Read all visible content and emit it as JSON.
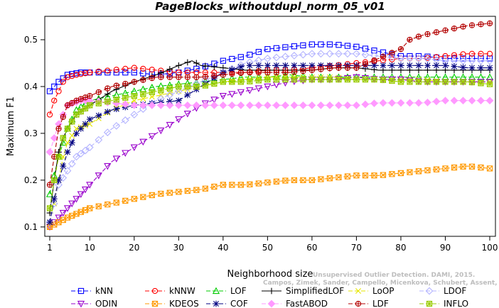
{
  "chart_data": {
    "type": "line",
    "title": "PageBlocks_withoutdupl_norm_05_v01",
    "xlabel": "Neighborhood size",
    "ylabel": "Maximum F1",
    "xlim": [
      1,
      100
    ],
    "ylim": [
      0.08,
      0.55
    ],
    "xticks": [
      1,
      10,
      20,
      30,
      40,
      50,
      60,
      70,
      80,
      90,
      100
    ],
    "yticks": [
      0.1,
      0.2,
      0.3,
      0.4,
      0.5
    ],
    "watermark": [
      "Unsupervised Outlier Detection. DAMI, 2015.",
      "Campos, Zimek, Sander, Campello, Micenkova, Schubert, Assent, Houle"
    ],
    "legend_position": "bottom",
    "series": [
      {
        "name": "kNN",
        "color": "#0000ff",
        "marker": "square",
        "dash": "6,3",
        "x": [
          1,
          3,
          5,
          8,
          10,
          15,
          20,
          25,
          30,
          35,
          40,
          45,
          50,
          55,
          60,
          65,
          70,
          75,
          80,
          85,
          90,
          95,
          100
        ],
        "y": [
          0.39,
          0.41,
          0.425,
          0.43,
          0.43,
          0.43,
          0.43,
          0.425,
          0.43,
          0.44,
          0.455,
          0.465,
          0.48,
          0.485,
          0.49,
          0.49,
          0.485,
          0.475,
          0.465,
          0.465,
          0.46,
          0.46,
          0.46
        ]
      },
      {
        "name": "kNNW",
        "color": "#ff0000",
        "marker": "circle",
        "dash": "6,3",
        "x": [
          1,
          2,
          3,
          4,
          5,
          7,
          10,
          15,
          20,
          25,
          30,
          35,
          40,
          45,
          50,
          55,
          60,
          65,
          70,
          75,
          80,
          85,
          90,
          95,
          100
        ],
        "y": [
          0.34,
          0.37,
          0.39,
          0.41,
          0.42,
          0.425,
          0.43,
          0.435,
          0.44,
          0.435,
          0.43,
          0.43,
          0.43,
          0.43,
          0.435,
          0.435,
          0.44,
          0.445,
          0.45,
          0.455,
          0.46,
          0.46,
          0.465,
          0.47,
          0.47
        ]
      },
      {
        "name": "LOF",
        "color": "#00cc00",
        "marker": "triangle-up",
        "dash": "6,3",
        "x": [
          1,
          2,
          3,
          4,
          5,
          7,
          10,
          15,
          20,
          25,
          30,
          35,
          40,
          45,
          50,
          55,
          60,
          65,
          70,
          75,
          80,
          85,
          90,
          95,
          100
        ],
        "y": [
          0.17,
          0.21,
          0.25,
          0.28,
          0.31,
          0.35,
          0.37,
          0.38,
          0.39,
          0.4,
          0.405,
          0.41,
          0.415,
          0.42,
          0.42,
          0.425,
          0.42,
          0.42,
          0.42,
          0.42,
          0.42,
          0.42,
          0.42,
          0.42,
          0.42
        ]
      },
      {
        "name": "SimplifiedLOF",
        "color": "#000000",
        "marker": "plus",
        "dash": "",
        "x": [
          1,
          2,
          3,
          4,
          5,
          7,
          10,
          15,
          20,
          25,
          30,
          33,
          35,
          40,
          45,
          50,
          55,
          60,
          65,
          70,
          75,
          80,
          85,
          90,
          95,
          100
        ],
        "y": [
          0.13,
          0.2,
          0.26,
          0.29,
          0.31,
          0.34,
          0.36,
          0.39,
          0.41,
          0.425,
          0.445,
          0.455,
          0.445,
          0.44,
          0.435,
          0.435,
          0.435,
          0.435,
          0.44,
          0.44,
          0.435,
          0.435,
          0.435,
          0.435,
          0.435,
          0.435
        ]
      },
      {
        "name": "LoOP",
        "color": "#e6e600",
        "marker": "x",
        "dash": "6,3",
        "x": [
          1,
          2,
          3,
          4,
          5,
          7,
          10,
          15,
          20,
          25,
          30,
          35,
          40,
          45,
          50,
          55,
          60,
          65,
          70,
          75,
          80,
          85,
          90,
          95,
          100
        ],
        "y": [
          0.11,
          0.15,
          0.2,
          0.25,
          0.28,
          0.31,
          0.32,
          0.35,
          0.37,
          0.38,
          0.39,
          0.4,
          0.41,
          0.415,
          0.42,
          0.42,
          0.42,
          0.42,
          0.415,
          0.415,
          0.415,
          0.415,
          0.41,
          0.41,
          0.41
        ]
      },
      {
        "name": "LDOF",
        "color": "#b3b3ff",
        "marker": "diamond",
        "dash": "6,3",
        "x": [
          1,
          2,
          3,
          5,
          7,
          10,
          15,
          20,
          25,
          30,
          35,
          40,
          45,
          50,
          55,
          60,
          65,
          70,
          75,
          80,
          85,
          90,
          95,
          100
        ],
        "y": [
          0.11,
          0.15,
          0.19,
          0.22,
          0.25,
          0.27,
          0.31,
          0.34,
          0.37,
          0.39,
          0.41,
          0.43,
          0.45,
          0.46,
          0.465,
          0.47,
          0.47,
          0.47,
          0.465,
          0.46,
          0.46,
          0.455,
          0.455,
          0.455
        ]
      },
      {
        "name": "ODIN",
        "color": "#9900cc",
        "marker": "triangle-down",
        "dash": "6,3",
        "x": [
          1,
          3,
          5,
          8,
          10,
          12,
          15,
          20,
          25,
          30,
          35,
          40,
          45,
          50,
          55,
          60,
          65,
          70,
          75,
          80,
          85,
          90,
          95,
          100
        ],
        "y": [
          0.1,
          0.12,
          0.14,
          0.17,
          0.19,
          0.21,
          0.24,
          0.27,
          0.3,
          0.33,
          0.36,
          0.38,
          0.39,
          0.4,
          0.41,
          0.415,
          0.415,
          0.42,
          0.415,
          0.415,
          0.41,
          0.41,
          0.41,
          0.41
        ]
      },
      {
        "name": "KDEOS",
        "color": "#ff9900",
        "marker": "square-x",
        "dash": "6,3",
        "x": [
          1,
          5,
          10,
          15,
          20,
          25,
          30,
          35,
          40,
          45,
          50,
          55,
          60,
          65,
          70,
          75,
          80,
          85,
          90,
          95,
          100
        ],
        "y": [
          0.1,
          0.12,
          0.14,
          0.15,
          0.16,
          0.17,
          0.175,
          0.18,
          0.19,
          0.19,
          0.195,
          0.2,
          0.2,
          0.205,
          0.21,
          0.21,
          0.215,
          0.22,
          0.225,
          0.23,
          0.225
        ]
      },
      {
        "name": "COF",
        "color": "#000080",
        "marker": "asterisk",
        "dash": "6,3",
        "x": [
          1,
          2,
          3,
          4,
          5,
          7,
          10,
          15,
          20,
          25,
          30,
          35,
          40,
          45,
          50,
          55,
          60,
          65,
          70,
          75,
          80,
          85,
          90,
          95,
          100
        ],
        "y": [
          0.11,
          0.16,
          0.2,
          0.23,
          0.26,
          0.3,
          0.33,
          0.35,
          0.36,
          0.365,
          0.37,
          0.4,
          0.43,
          0.445,
          0.445,
          0.445,
          0.445,
          0.445,
          0.445,
          0.445,
          0.445,
          0.445,
          0.445,
          0.44,
          0.44
        ]
      },
      {
        "name": "FastABOD",
        "color": "#ff99ff",
        "marker": "diamond-filled",
        "dash": "6,3",
        "x": [
          1,
          3,
          5,
          8,
          10,
          15,
          20,
          25,
          30,
          35,
          40,
          45,
          50,
          55,
          60,
          65,
          70,
          75,
          80,
          85,
          90,
          95,
          100
        ],
        "y": [
          0.26,
          0.32,
          0.36,
          0.37,
          0.37,
          0.365,
          0.36,
          0.36,
          0.36,
          0.36,
          0.36,
          0.36,
          0.36,
          0.36,
          0.36,
          0.36,
          0.36,
          0.365,
          0.365,
          0.365,
          0.37,
          0.37,
          0.37
        ]
      },
      {
        "name": "LDF",
        "color": "#b30000",
        "marker": "circle-plus",
        "dash": "6,3",
        "x": [
          1,
          2,
          3,
          5,
          7,
          10,
          15,
          20,
          25,
          30,
          35,
          40,
          45,
          50,
          55,
          60,
          65,
          70,
          75,
          80,
          82,
          85,
          90,
          95,
          100
        ],
        "y": [
          0.19,
          0.25,
          0.31,
          0.36,
          0.37,
          0.38,
          0.4,
          0.41,
          0.42,
          0.42,
          0.42,
          0.425,
          0.43,
          0.43,
          0.43,
          0.435,
          0.44,
          0.44,
          0.46,
          0.48,
          0.5,
          0.51,
          0.52,
          0.53,
          0.535
        ]
      },
      {
        "name": "INFLO",
        "color": "#99cc00",
        "marker": "square-star",
        "dash": "6,3",
        "x": [
          1,
          2,
          3,
          4,
          5,
          7,
          10,
          15,
          20,
          25,
          30,
          35,
          40,
          45,
          50,
          55,
          60,
          65,
          70,
          75,
          80,
          85,
          90,
          95,
          100
        ],
        "y": [
          0.14,
          0.2,
          0.25,
          0.29,
          0.31,
          0.34,
          0.36,
          0.37,
          0.38,
          0.39,
          0.4,
          0.4,
          0.41,
          0.41,
          0.415,
          0.415,
          0.415,
          0.415,
          0.415,
          0.415,
          0.41,
          0.41,
          0.41,
          0.41,
          0.405
        ]
      }
    ]
  }
}
